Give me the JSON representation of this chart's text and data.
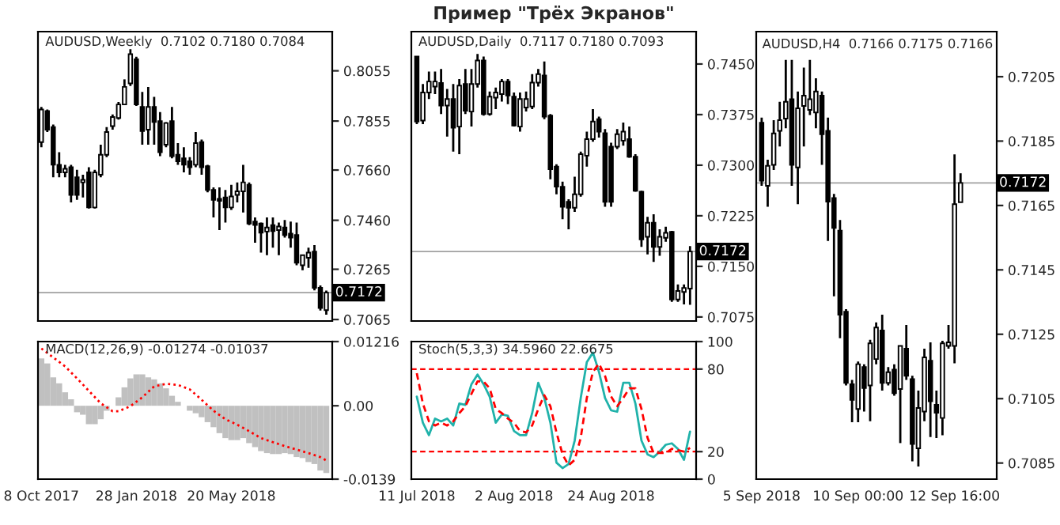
{
  "chart_data": [
    {
      "type": "candlestick",
      "title": "AUDUSD,Weekly  0.7102 0.7180 0.7084",
      "x": [
        "2017-10-08",
        "2017-10-15",
        "2017-10-22",
        "2017-10-29",
        "2017-11-05",
        "2017-11-12",
        "2017-11-19",
        "2017-11-26",
        "2017-12-03",
        "2017-12-10",
        "2017-12-17",
        "2017-12-24",
        "2017-12-31",
        "2018-01-07",
        "2018-01-14",
        "2018-01-21",
        "2018-01-28",
        "2018-02-04",
        "2018-02-11",
        "2018-02-18",
        "2018-02-25",
        "2018-03-04",
        "2018-03-11",
        "2018-03-18",
        "2018-03-25",
        "2018-04-01",
        "2018-04-08",
        "2018-04-15",
        "2018-04-22",
        "2018-04-29",
        "2018-05-06",
        "2018-05-13",
        "2018-05-20",
        "2018-05-27",
        "2018-06-03",
        "2018-06-10",
        "2018-06-17",
        "2018-06-24",
        "2018-07-01",
        "2018-07-08",
        "2018-07-15",
        "2018-07-22",
        "2018-07-29",
        "2018-08-05",
        "2018-08-12",
        "2018-08-19",
        "2018-08-26",
        "2018-09-02",
        "2018-09-09"
      ],
      "ohlc": [
        [
          0.7771,
          0.7911,
          0.7751,
          0.7901
        ],
        [
          0.7895,
          0.7901,
          0.7811,
          0.7821
        ],
        [
          0.7831,
          0.7841,
          0.7631,
          0.7681
        ],
        [
          0.7681,
          0.7731,
          0.7631,
          0.7651
        ],
        [
          0.7651,
          0.7681,
          0.7631,
          0.7665
        ],
        [
          0.7671,
          0.7681,
          0.7531,
          0.7561
        ],
        [
          0.7631,
          0.7661,
          0.7541,
          0.7561
        ],
        [
          0.7611,
          0.7641,
          0.7551,
          0.7621
        ],
        [
          0.7651,
          0.7671,
          0.7507,
          0.7511
        ],
        [
          0.7511,
          0.7661,
          0.7507,
          0.7651
        ],
        [
          0.7641,
          0.7761,
          0.7631,
          0.7721
        ],
        [
          0.7721,
          0.7831,
          0.7711,
          0.7811
        ],
        [
          0.7835,
          0.7881,
          0.7821,
          0.7871
        ],
        [
          0.7867,
          0.7931,
          0.7861,
          0.7921
        ],
        [
          0.7921,
          0.8021,
          0.7921,
          0.7991
        ],
        [
          0.8005,
          0.8141,
          0.7995,
          0.8121
        ],
        [
          0.8101,
          0.8111,
          0.7915,
          0.7921
        ],
        [
          0.7911,
          0.7971,
          0.7761,
          0.7815
        ],
        [
          0.7821,
          0.7991,
          0.7761,
          0.7911
        ],
        [
          0.7911,
          0.7951,
          0.7761,
          0.7851
        ],
        [
          0.7855,
          0.7891,
          0.7715,
          0.7731
        ],
        [
          0.7761,
          0.7851,
          0.7751,
          0.7847
        ],
        [
          0.7855,
          0.7911,
          0.7707,
          0.7715
        ],
        [
          0.7721,
          0.7767,
          0.7681,
          0.7695
        ],
        [
          0.7707,
          0.7751,
          0.7651,
          0.7681
        ],
        [
          0.7695,
          0.7711,
          0.7641,
          0.7671
        ],
        [
          0.7681,
          0.7811,
          0.7671,
          0.7767
        ],
        [
          0.7771,
          0.7781,
          0.7641,
          0.7671
        ],
        [
          0.7675,
          0.7681,
          0.7571,
          0.7581
        ],
        [
          0.7581,
          0.7591,
          0.7471,
          0.7541
        ],
        [
          0.7545,
          0.7591,
          0.7421,
          0.7537
        ],
        [
          0.7551,
          0.7581,
          0.7451,
          0.7511
        ],
        [
          0.7511,
          0.7601,
          0.7501,
          0.7555
        ],
        [
          0.7561,
          0.7611,
          0.7531,
          0.7575
        ],
        [
          0.7575,
          0.7681,
          0.7491,
          0.7611
        ],
        [
          0.7601,
          0.7611,
          0.7441,
          0.7447
        ],
        [
          0.7455,
          0.7471,
          0.7371,
          0.7441
        ],
        [
          0.7447,
          0.7451,
          0.7331,
          0.7411
        ],
        [
          0.7415,
          0.7471,
          0.7321,
          0.7431
        ],
        [
          0.7441,
          0.7471,
          0.7351,
          0.7417
        ],
        [
          0.7421,
          0.7451,
          0.7321,
          0.7435
        ],
        [
          0.7431,
          0.7461,
          0.7391,
          0.7401
        ],
        [
          0.7407,
          0.7455,
          0.7351,
          0.7391
        ],
        [
          0.7401,
          0.7451,
          0.7281,
          0.7291
        ],
        [
          0.7281,
          0.7321,
          0.7261,
          0.7321
        ],
        [
          0.7311,
          0.7351,
          0.7271,
          0.7331
        ],
        [
          0.7335,
          0.7361,
          0.7181,
          0.7191
        ],
        [
          0.7191,
          0.7201,
          0.7101,
          0.7111
        ],
        [
          0.7102,
          0.718,
          0.7084,
          0.7172
        ]
      ],
      "colors": [
        "#ffffff",
        "#000000",
        "#000000",
        "#000000",
        "#ffffff",
        "#000000",
        "#000000",
        "#ffffff",
        "#000000",
        "#ffffff",
        "#ffffff",
        "#ffffff",
        "#ffffff",
        "#ffffff",
        "#ffffff",
        "#ffffff",
        "#000000",
        "#000000",
        "#ffffff",
        "#000000",
        "#000000",
        "#ffffff",
        "#000000",
        "#000000",
        "#000000",
        "#000000",
        "#ffffff",
        "#000000",
        "#000000",
        "#000000",
        "#000000",
        "#000000",
        "#ffffff",
        "#ffffff",
        "#ffffff",
        "#000000",
        "#000000",
        "#000000",
        "#ffffff",
        "#000000",
        "#ffffff",
        "#000000",
        "#000000",
        "#000000",
        "#ffffff",
        "#ffffff",
        "#000000",
        "#000000",
        "#ffffff"
      ],
      "xlim": [
        "2017-10-04",
        "2018-09-16"
      ],
      "ylim": [
        0.7059,
        0.8211
      ],
      "yticks": [
        0.7065,
        0.7265,
        {
          "value": 0.746,
          "label": "0.7460"
        },
        {
          "value": 0.766,
          "label": "0.7660"
        },
        0.7855,
        0.8055
      ],
      "ref_lines": [
        {
          "axis": "y",
          "value": 0.7172,
          "label": "0.7172",
          "color": "#a0a0a0"
        }
      ],
      "tick_labels": "y"
    },
    {
      "type": "candlestick",
      "title": "Пример \"Трёх Экранов\"",
      "subtitle": "AUDUSD,Daily  0.7117 0.7180 0.7093",
      "categories": [
        null,
        null,
        null,
        null,
        null,
        null,
        null,
        null,
        null,
        null,
        null,
        null,
        null,
        null,
        null,
        null,
        null,
        null,
        null,
        null,
        null,
        null,
        null,
        null,
        null,
        null,
        null,
        null,
        null,
        null,
        null,
        null,
        null,
        null,
        null,
        null,
        null,
        null,
        null,
        null,
        null,
        null,
        null,
        null,
        null,
        null
      ],
      "ohlc": [
        [
          0.74611,
          0.74611,
          0.73609,
          0.73646
        ],
        [
          0.73661,
          0.74203,
          0.73609,
          0.74077
        ],
        [
          0.74077,
          0.74389,
          0.7398,
          0.7424
        ],
        [
          0.74166,
          0.74389,
          0.74054,
          0.7424
        ],
        [
          0.74218,
          0.74426,
          0.73757,
          0.73884
        ],
        [
          0.73884,
          0.74129,
          0.73423,
          0.7398
        ],
        [
          0.7398,
          0.74203,
          0.732,
          0.73557
        ],
        [
          0.73572,
          0.74277,
          0.73163,
          0.74181
        ],
        [
          0.74203,
          0.74426,
          0.73757,
          0.73809
        ],
        [
          0.73795,
          0.74426,
          0.73572,
          0.74203
        ],
        [
          0.74203,
          0.74649,
          0.74151,
          0.74552
        ],
        [
          0.74552,
          0.74611,
          0.73735,
          0.73757
        ],
        [
          0.73757,
          0.74092,
          0.73735,
          0.74017
        ],
        [
          0.74002,
          0.74151,
          0.73832,
          0.74077
        ],
        [
          0.74054,
          0.74277,
          0.73943,
          0.7424
        ],
        [
          0.7424,
          0.74277,
          0.73906,
          0.74032
        ],
        [
          0.74017,
          0.74077,
          0.73572,
          0.73587
        ],
        [
          0.73572,
          0.74077,
          0.73498,
          0.7398
        ],
        [
          0.73854,
          0.74092,
          0.73795,
          0.7398
        ],
        [
          0.73869,
          0.74351,
          0.73832,
          0.74225
        ],
        [
          0.74225,
          0.74426,
          0.74166,
          0.74351
        ],
        [
          0.74329,
          0.74537,
          0.73683,
          0.7372
        ],
        [
          0.73735,
          0.73757,
          0.72792,
          0.72941
        ],
        [
          0.72978,
          0.73015,
          0.72569,
          0.72681
        ],
        [
          0.72681,
          0.72755,
          0.72198,
          0.72384
        ],
        [
          0.72458,
          0.72495,
          0.7205,
          0.72369
        ],
        [
          0.72369,
          0.72829,
          0.72309,
          0.72569
        ],
        [
          0.72569,
          0.732,
          0.72532,
          0.73163
        ],
        [
          0.73141,
          0.73498,
          0.72978,
          0.73386
        ],
        [
          0.73386,
          0.73832,
          0.73349,
          0.73646
        ],
        [
          0.73683,
          0.7372,
          0.73408,
          0.73498
        ],
        [
          0.73475,
          0.73535,
          0.72384,
          0.72458
        ],
        [
          0.73275,
          0.73334,
          0.72384,
          0.72458
        ],
        [
          0.73275,
          0.73535,
          0.73238,
          0.7346
        ],
        [
          0.73364,
          0.73631,
          0.7329,
          0.73498
        ],
        [
          0.73386,
          0.73572,
          0.73111,
          0.73126
        ],
        [
          0.73126,
          0.73163,
          0.72606,
          0.72621
        ],
        [
          0.72606,
          0.72621,
          0.7179,
          0.71901
        ],
        [
          0.71938,
          0.72235,
          0.71678,
          0.72146
        ],
        [
          0.72146,
          0.72272,
          0.71567,
          0.7179
        ],
        [
          0.7179,
          0.7205,
          0.71656,
          0.71938
        ],
        [
          0.71923,
          0.72087,
          0.71864,
          0.71997
        ],
        [
          0.72012,
          0.72027,
          0.70973,
          0.7101
        ],
        [
          0.7101,
          0.71233,
          0.70973,
          0.71136
        ],
        [
          0.71121,
          0.71233,
          0.70936,
          0.71181
        ],
        [
          0.7117,
          0.718,
          0.7093,
          0.7172
        ]
      ],
      "colors": [
        "#000000",
        "#ffffff",
        "#ffffff",
        "#ffffff",
        "#000000",
        "#ffffff",
        "#000000",
        "#ffffff",
        "#000000",
        "#ffffff",
        "#ffffff",
        "#000000",
        "#ffffff",
        "#ffffff",
        "#ffffff",
        "#000000",
        "#000000",
        "#ffffff",
        "#ffffff",
        "#ffffff",
        "#ffffff",
        "#000000",
        "#000000",
        "#000000",
        "#000000",
        "#000000",
        "#ffffff",
        "#ffffff",
        "#ffffff",
        "#ffffff",
        "#000000",
        "#000000",
        "#000000",
        "#ffffff",
        "#ffffff",
        "#000000",
        "#000000",
        "#000000",
        "#ffffff",
        "#000000",
        "#ffffff",
        "#ffffff",
        "#000000",
        "#ffffff",
        "#ffffff",
        "#ffffff"
      ],
      "ylim": [
        0.7069,
        0.7498
      ],
      "yticks": [
        {
          "value": 0.7075,
          "label": "0.7075"
        },
        {
          "value": 0.715,
          "label": "0.7150"
        },
        0.7225,
        {
          "value": 0.73,
          "label": "0.7300"
        },
        0.7375,
        {
          "value": 0.745,
          "label": "0.7450"
        }
      ],
      "ref_lines": [
        {
          "axis": "y",
          "value": 0.7172,
          "label": "0.7172",
          "color": "#a0a0a0"
        }
      ],
      "tick_labels": "y"
    },
    {
      "type": "candlestick",
      "title": "AUDUSD,H4  0.7166 0.7175 0.7166",
      "categories": [
        "5 Sep 2018",
        null,
        null,
        null,
        null,
        null,
        null,
        null,
        null,
        null,
        null,
        null,
        null,
        null,
        null,
        null,
        "10 Sep 00:00",
        null,
        null,
        null,
        null,
        null,
        null,
        null,
        null,
        null,
        null,
        null,
        null,
        null,
        null,
        null,
        "12 Sep 16:00",
        null
      ],
      "ohlc": [
        [
          0.71907,
          0.71923,
          0.71711,
          0.71727
        ],
        [
          0.71711,
          0.71792,
          0.71646,
          0.71773
        ],
        [
          0.71776,
          0.71915,
          0.7176,
          0.71874
        ],
        [
          0.71882,
          0.71972,
          0.71833,
          0.71915
        ],
        [
          0.7192,
          0.72102,
          0.7189,
          0.71972
        ],
        [
          0.7198,
          0.72102,
          0.71711,
          0.71776
        ],
        [
          0.71768,
          0.72004,
          0.71654,
          0.71952
        ],
        [
          0.71959,
          0.72078,
          0.71833,
          0.71991
        ],
        [
          0.71947,
          0.72102,
          0.71931,
          0.7198
        ],
        [
          0.71939,
          0.72045,
          0.7189,
          0.72004
        ],
        [
          0.71991,
          0.72004,
          0.71776,
          0.71871
        ],
        [
          0.71882,
          0.71923,
          0.7154,
          0.71662
        ],
        [
          0.71673,
          0.71686,
          0.71368,
          0.7158
        ],
        [
          0.71572,
          0.71605,
          0.71238,
          0.71311
        ],
        [
          0.7132,
          0.71328,
          0.71091,
          0.71099
        ],
        [
          0.71095,
          0.71108,
          0.70977,
          0.71046
        ],
        [
          0.71018,
          0.71165,
          0.70977,
          0.71157
        ],
        [
          0.71148,
          0.71157,
          0.7101,
          0.71083
        ],
        [
          0.71091,
          0.71233,
          0.7098,
          0.71222
        ],
        [
          0.71173,
          0.71287,
          0.71157,
          0.71271
        ],
        [
          0.71262,
          0.71311,
          0.71075,
          0.71099
        ],
        [
          0.71099,
          0.71148,
          0.71091,
          0.71132
        ],
        [
          0.7114,
          0.71157,
          0.71059,
          0.71067
        ],
        [
          0.7108,
          0.71214,
          0.70912,
          0.71214
        ],
        [
          0.71205,
          0.71279,
          0.71108,
          0.71121
        ],
        [
          0.71111,
          0.71121,
          0.70855,
          0.70909
        ],
        [
          0.70896,
          0.71075,
          0.70839,
          0.71021
        ],
        [
          0.7101,
          0.71205,
          0.7098,
          0.71178
        ],
        [
          0.71168,
          0.71225,
          0.70931,
          0.71042
        ],
        [
          0.71031,
          0.71075,
          0.70928,
          0.71006
        ],
        [
          0.7099,
          0.7123,
          0.70936,
          0.71222
        ],
        [
          0.71214,
          0.71279,
          0.71205,
          0.71225
        ],
        [
          0.71214,
          0.71809,
          0.7116,
          0.71654
        ],
        [
          0.7166,
          0.7175,
          0.7166,
          0.7172
        ]
      ],
      "colors": [
        "#000000",
        "#ffffff",
        "#ffffff",
        "#ffffff",
        "#ffffff",
        "#000000",
        "#ffffff",
        "#ffffff",
        "#ffffff",
        "#ffffff",
        "#000000",
        "#000000",
        "#000000",
        "#000000",
        "#000000",
        "#000000",
        "#ffffff",
        "#000000",
        "#ffffff",
        "#ffffff",
        "#000000",
        "#ffffff",
        "#000000",
        "#ffffff",
        "#000000",
        "#000000",
        "#ffffff",
        "#ffffff",
        "#000000",
        "#000000",
        "#ffffff",
        "#ffffff",
        "#ffffff",
        "#ffffff"
      ],
      "ylim": [
        0.708,
        0.7219
      ],
      "yticks": [
        0.7085,
        0.7105,
        0.7125,
        0.7145,
        0.7165,
        0.7185,
        0.7205
      ],
      "ref_lines": [
        {
          "axis": "y",
          "value": 0.7172,
          "label": "0.7172",
          "color": "#a0a0a0"
        }
      ]
    },
    {
      "type": "bar",
      "title": "MACD(12,26,9) -0.01274 -0.01037",
      "x": [
        "2017-10-08",
        "2017-10-15",
        "2017-10-22",
        "2017-10-29",
        "2017-11-05",
        "2017-11-12",
        "2017-11-19",
        "2017-11-26",
        "2017-12-03",
        "2017-12-10",
        "2017-12-17",
        "2017-12-24",
        "2017-12-31",
        "2018-01-07",
        "2018-01-14",
        "2018-01-21",
        "2018-01-28",
        "2018-02-04",
        "2018-02-11",
        "2018-02-18",
        "2018-02-25",
        "2018-03-04",
        "2018-03-11",
        "2018-03-18",
        "2018-03-25",
        "2018-04-01",
        "2018-04-08",
        "2018-04-15",
        "2018-04-22",
        "2018-04-29",
        "2018-05-06",
        "2018-05-13",
        "2018-05-20",
        "2018-05-27",
        "2018-06-03",
        "2018-06-10",
        "2018-06-17",
        "2018-06-24",
        "2018-07-01",
        "2018-07-08",
        "2018-07-15",
        "2018-07-22",
        "2018-07-29",
        "2018-08-05",
        "2018-08-12",
        "2018-08-19",
        "2018-08-26",
        "2018-09-02",
        "2018-09-09"
      ],
      "series": [
        {
          "type": "bar",
          "color": "#c0c0c0",
          "values": [
            0.00897,
            0.00802,
            0.00538,
            0.00425,
            0.00255,
            0.00123,
            -0.00123,
            -0.0017,
            -0.00349,
            -0.00349,
            -0.00255,
            -0.00094,
            null,
            0.0016,
            0.00349,
            0.00519,
            0.00595,
            0.00595,
            0.00538,
            0.005,
            0.00425,
            0.0033,
            0.00189,
            0.00075,
            null,
            -0.00094,
            -0.00142,
            -0.00217,
            -0.00311,
            -0.00406,
            -0.00519,
            -0.00613,
            -0.00651,
            -0.00651,
            -0.00613,
            -0.00708,
            -0.00783,
            -0.00859,
            -0.00897,
            -0.00915,
            -0.00915,
            -0.00897,
            -0.00915,
            -0.00972,
            -0.00991,
            -0.01066,
            -0.01104,
            -0.01227,
            -0.01274
          ]
        },
        {
          "type": "line",
          "color": "#ff0000",
          "line_style": "dotted",
          "x": [
            "2017-10-08",
            "2017-10-22",
            "2017-11-05",
            "2017-11-19",
            "2017-12-03",
            "2017-12-17",
            "2017-12-31",
            "2018-01-07",
            "2018-01-21",
            "2018-02-04",
            "2018-02-18",
            "2018-03-04",
            "2018-03-18",
            "2018-04-01",
            "2018-04-15",
            "2018-04-29",
            "2018-05-13",
            "2018-05-27",
            "2018-06-10",
            "2018-06-24",
            "2018-07-08",
            "2018-07-22",
            "2018-08-05",
            "2018-08-19",
            "2018-09-02",
            "2018-09-09"
          ],
          "values": [
            0.01085,
            0.00915,
            0.00746,
            0.00519,
            0.00283,
            0.00047,
            -0.00104,
            -0.00104,
            -9e-05,
            0.0016,
            0.00368,
            0.00415,
            0.00396,
            0.00311,
            0.00113,
            -0.00094,
            -0.00255,
            -0.00359,
            -0.00481,
            -0.00613,
            -0.00689,
            -0.00764,
            -0.0083,
            -0.00897,
            -0.00972,
            -0.01037
          ]
        }
      ],
      "xlim": [
        "2017-10-04",
        "2018-09-16"
      ],
      "xticks": [
        {
          "value": "2017-10-08",
          "label": "8 Oct 2017"
        },
        {
          "value": "2018-01-28",
          "label": "28 Jan 2018"
        },
        {
          "value": "2018-05-20",
          "label": "20 May 2018"
        }
      ],
      "ylim": [
        -0.0139,
        0.01216
      ],
      "yticks": [
        -0.0139,
        {
          "value": 0,
          "label": "0.00"
        },
        0.01216
      ]
    },
    {
      "type": "line",
      "title": "Stoch(5,3,3) 34.5960 22.6675",
      "categories": [
        "11 Jul 2018",
        null,
        null,
        null,
        null,
        null,
        null,
        null,
        null,
        null,
        null,
        null,
        null,
        null,
        null,
        null,
        "2 Aug 2018",
        null,
        null,
        null,
        null,
        null,
        null,
        null,
        null,
        null,
        null,
        null,
        null,
        null,
        null,
        null,
        "24 Aug 2018",
        null,
        null,
        null,
        null,
        null,
        null,
        null,
        null,
        null,
        null,
        null,
        null,
        null
      ],
      "series": [
        {
          "color": "#20b2aa",
          "line_style": "solid",
          "values": [
            60,
            41,
            32,
            44,
            42,
            44,
            39,
            55,
            54,
            69,
            76,
            69,
            60,
            41,
            47,
            46,
            35,
            32,
            32,
            48,
            70,
            59,
            41,
            12,
            8,
            11,
            28,
            59,
            85,
            92,
            78,
            59,
            50,
            49,
            70,
            70,
            55,
            28,
            18,
            16,
            20,
            25,
            26,
            22,
            14,
            34.596
          ]
        },
        {
          "color": "#ff0000",
          "line_style": "dashed",
          "values": [
            77,
            55,
            42,
            39,
            41,
            39,
            42,
            48,
            53,
            62,
            71,
            71,
            66,
            51,
            48,
            44,
            41,
            35,
            34,
            39,
            51,
            61,
            53,
            34,
            18,
            10,
            14,
            30,
            59,
            78,
            84,
            75,
            60,
            53,
            59,
            66,
            66,
            51,
            30,
            19,
            19,
            19,
            22,
            21,
            20,
            22.6675
          ]
        }
      ],
      "ylim": [
        0,
        100
      ],
      "yticks": [
        0,
        20,
        80,
        100
      ],
      "ref_lines": [
        {
          "axis": "y",
          "value": 20,
          "color": "#ff0000",
          "line_style": "dashed"
        },
        {
          "axis": "y",
          "value": 80,
          "color": "#ff0000",
          "line_style": "dashed"
        }
      ]
    }
  ]
}
